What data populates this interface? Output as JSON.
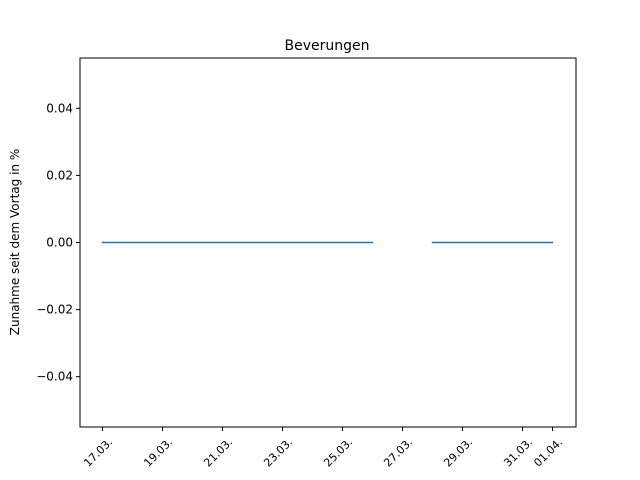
{
  "chart_data": {
    "type": "line",
    "title": "Beverungen",
    "xlabel": "",
    "ylabel": "Zunahme seit dem Vortag in %",
    "x": [
      "17.03.",
      "18.03.",
      "19.03.",
      "20.03.",
      "21.03.",
      "22.03.",
      "23.03.",
      "24.03.",
      "25.03.",
      "26.03.",
      "27.03.",
      "28.03.",
      "29.03.",
      "30.03.",
      "31.03.",
      "01.04."
    ],
    "series": [
      {
        "name": "",
        "values": [
          0,
          0,
          0,
          0,
          0,
          0,
          0,
          0,
          0,
          0,
          null,
          0,
          0,
          0,
          0,
          0
        ],
        "color": "#1f77b4"
      }
    ],
    "xticks": [
      "17.03.",
      "19.03.",
      "21.03.",
      "23.03.",
      "25.03.",
      "27.03.",
      "29.03.",
      "31.03.",
      "01.04."
    ],
    "yticks": [
      "0.04",
      "0.02",
      "0.00",
      "−0.02",
      "−0.04"
    ],
    "ylim": [
      -0.055,
      0.055
    ],
    "grid": false,
    "legend": "none"
  }
}
